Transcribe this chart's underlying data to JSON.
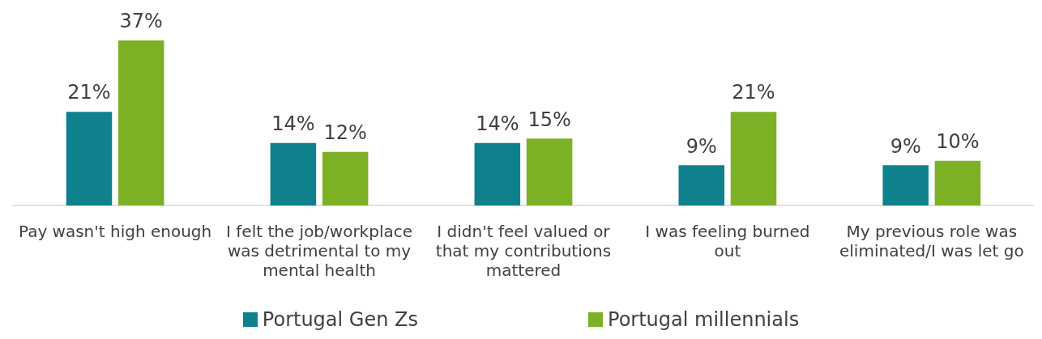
{
  "chart_data": {
    "type": "bar",
    "categories": [
      "Pay wasn't high enough",
      "I felt the job/workplace was detrimental to my mental health",
      "I didn't feel valued or that my contributions mattered",
      "I was feeling burned out",
      "My previous role was eliminated/I was let go"
    ],
    "series": [
      {
        "name": "Portugal Gen Zs",
        "color": "#0e818c",
        "values": [
          21,
          14,
          14,
          9,
          9
        ],
        "value_labels": [
          "21%",
          "14%",
          "14%",
          "9%",
          "9%"
        ]
      },
      {
        "name": "Portugal millennials",
        "color": "#7db125",
        "values": [
          37,
          12,
          15,
          21,
          10
        ],
        "value_labels": [
          "37%",
          "12%",
          "15%",
          "21%",
          "10%"
        ]
      }
    ],
    "legend": "bottom",
    "grid": false
  }
}
